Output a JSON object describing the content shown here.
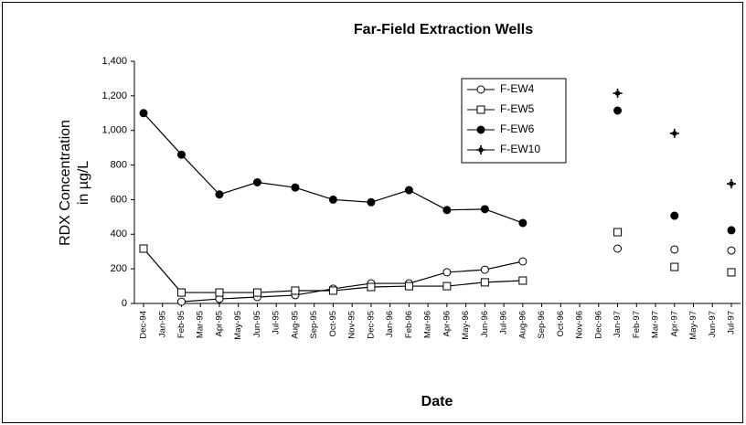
{
  "chart_data": {
    "type": "line",
    "title": "Far-Field Extraction Wells",
    "y_label": [
      "RDX Concentration",
      "in µg/L"
    ],
    "x_label": "Date",
    "categories": [
      "Dec-94",
      "Jan-95",
      "Feb-95",
      "Mar-95",
      "Apr-95",
      "May-95",
      "Jun-95",
      "Jul-95",
      "Aug-95",
      "Sep-95",
      "Oct-95",
      "Nov-95",
      "Dec-95",
      "Jan-96",
      "Feb-96",
      "Mar-96",
      "Apr-96",
      "May-96",
      "Jun-96",
      "Jul-96",
      "Aug-96",
      "Sep-96",
      "Oct-96",
      "Nov-96",
      "Dec-96",
      "Jan-97",
      "Feb-97",
      "Mar-97",
      "Apr-97",
      "May-97",
      "Jun-97",
      "Jul-97"
    ],
    "series": [
      {
        "name": "F-EW4",
        "color": "#000000",
        "marker": "open-circle",
        "values": [
          null,
          null,
          10,
          null,
          26,
          null,
          37,
          null,
          48,
          null,
          85,
          null,
          116,
          null,
          116,
          null,
          180,
          null,
          195,
          null,
          243,
          null,
          null,
          null,
          null,
          317,
          null,
          null,
          312,
          null,
          null,
          306
        ]
      },
      {
        "name": "F-EW5",
        "color": "#000000",
        "marker": "open-square",
        "values": [
          317,
          null,
          63,
          null,
          63,
          null,
          63,
          null,
          74,
          null,
          74,
          null,
          95,
          null,
          100,
          null,
          100,
          null,
          122,
          null,
          132,
          null,
          null,
          null,
          null,
          412,
          null,
          null,
          211,
          null,
          null,
          180
        ]
      },
      {
        "name": "F-EW6",
        "color": "#000000",
        "marker": "filled-circle",
        "values": [
          1100,
          null,
          860,
          null,
          630,
          null,
          700,
          null,
          670,
          null,
          600,
          null,
          585,
          null,
          655,
          null,
          540,
          null,
          545,
          null,
          465,
          null,
          null,
          null,
          null,
          1115,
          null,
          null,
          507,
          null,
          null,
          423
        ]
      },
      {
        "name": "F-EW10",
        "color": "#000000",
        "marker": "star",
        "values": [
          null,
          null,
          null,
          null,
          null,
          null,
          null,
          null,
          null,
          null,
          null,
          null,
          null,
          null,
          null,
          null,
          null,
          null,
          null,
          null,
          null,
          null,
          null,
          null,
          null,
          1215,
          null,
          null,
          983,
          null,
          null,
          692
        ]
      }
    ],
    "ylim": [
      0,
      1400
    ],
    "yticks": [
      0,
      200,
      400,
      600,
      800,
      {
        "value": 1000,
        "label": "1,000"
      },
      {
        "value": 1200,
        "label": "1,200"
      },
      {
        "value": 1400,
        "label": "1,400"
      }
    ],
    "grid": false,
    "legend": "top-right"
  }
}
